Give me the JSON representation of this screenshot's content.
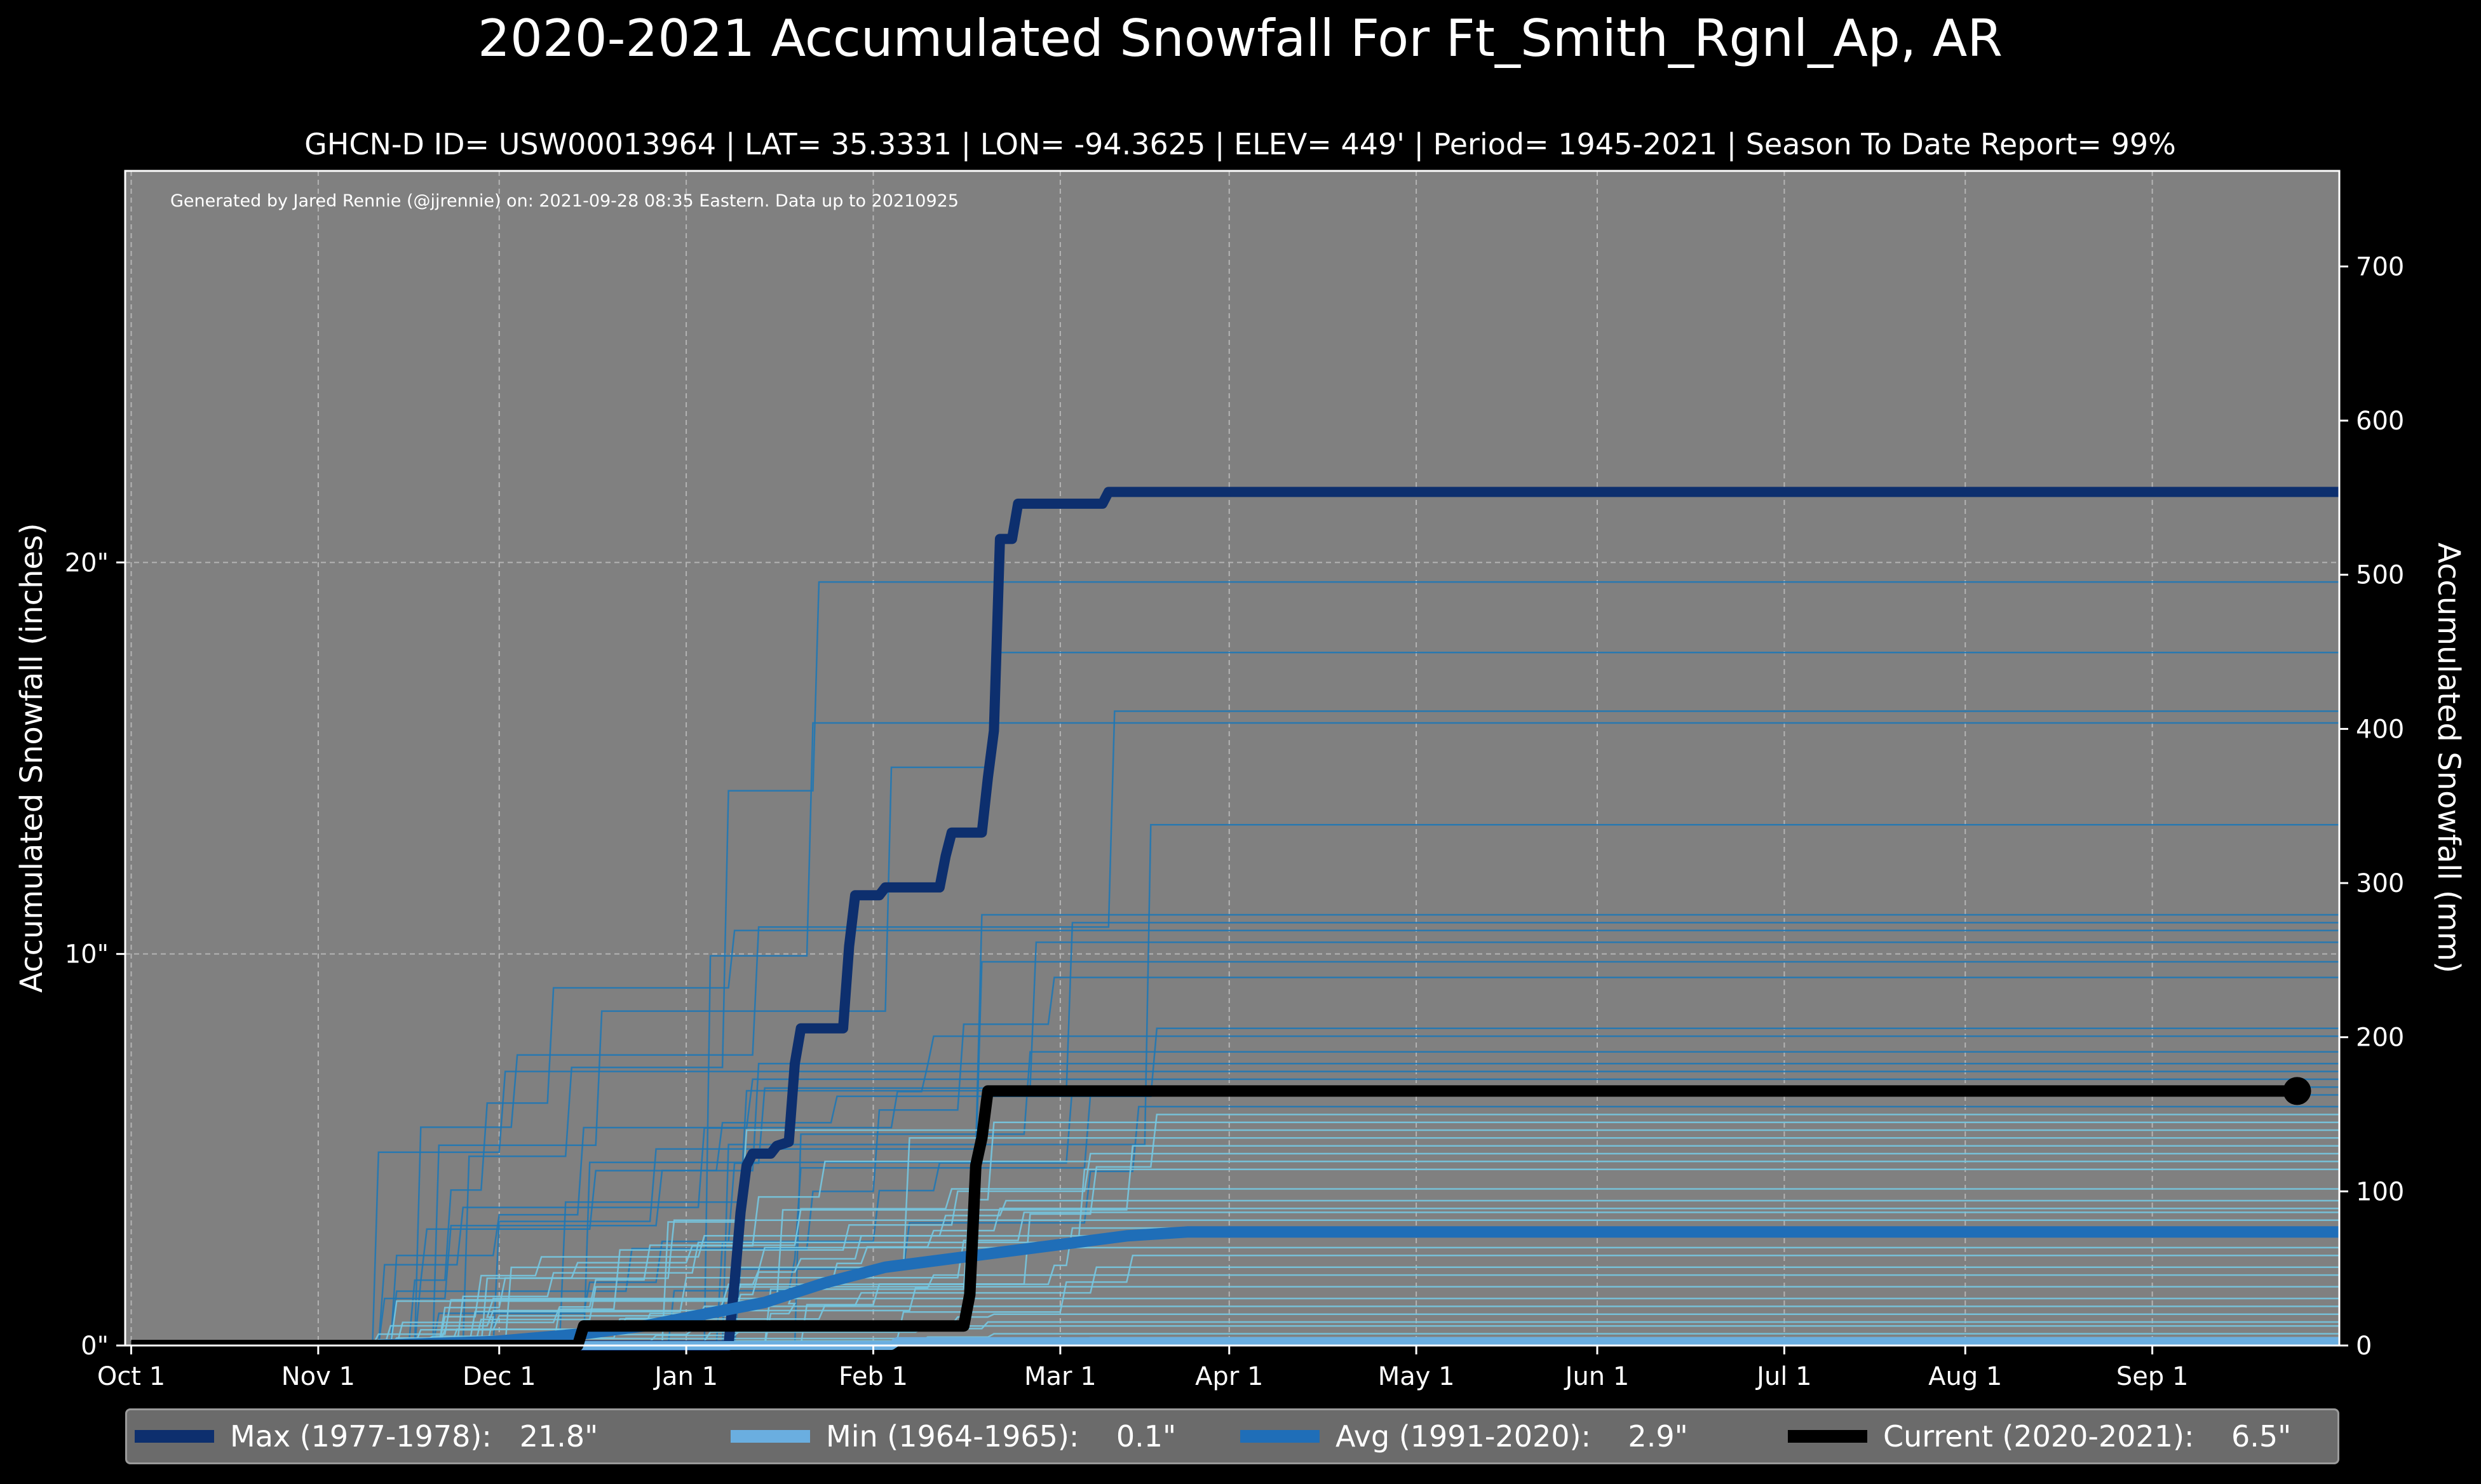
{
  "chart_data": {
    "type": "line",
    "title": "2020-2021 Accumulated Snowfall For Ft_Smith_Rgnl_Ap, AR",
    "subtitle": "GHCN-D ID= USW00013964 | LAT= 35.3331 | LON= -94.3625 | ELEV= 449' | Period= 1945-2021 | Season To Date Report= 99%",
    "credit": "Generated by Jared Rennie (@jjrennie) on: 2021-09-28 08:35 Eastern. Data up to 20210925",
    "ylabel": "Accumulated Snowfall (inches)",
    "ylabel_right": "Accumulated Snowfall (mm)",
    "x_unit": "day of season (0 = Oct 1)",
    "xlim": [
      -1,
      366
    ],
    "ylim": [
      0,
      30
    ],
    "ylim_right_mm": [
      0,
      762
    ],
    "x_ticks": [
      {
        "day": 0,
        "label": "Oct 1"
      },
      {
        "day": 31,
        "label": "Nov 1"
      },
      {
        "day": 61,
        "label": "Dec 1"
      },
      {
        "day": 92,
        "label": "Jan 1"
      },
      {
        "day": 123,
        "label": "Feb 1"
      },
      {
        "day": 154,
        "label": "Mar 1"
      },
      {
        "day": 182,
        "label": "Apr 1"
      },
      {
        "day": 213,
        "label": "May 1"
      },
      {
        "day": 243,
        "label": "Jun 1"
      },
      {
        "day": 274,
        "label": "Jul 1"
      },
      {
        "day": 304,
        "label": "Aug 1"
      },
      {
        "day": 335,
        "label": "Sep 1"
      }
    ],
    "y_ticks": [
      {
        "value": 0,
        "label": "0\""
      },
      {
        "value": 10,
        "label": "10\""
      },
      {
        "value": 20,
        "label": "20\""
      }
    ],
    "y_ticks_right": [
      {
        "value": 0,
        "label": "0"
      },
      {
        "value": 100,
        "label": "100"
      },
      {
        "value": 200,
        "label": "200"
      },
      {
        "value": 300,
        "label": "300"
      },
      {
        "value": 400,
        "label": "400"
      },
      {
        "value": 500,
        "label": "500"
      },
      {
        "value": 600,
        "label": "600"
      },
      {
        "value": 700,
        "label": "700"
      }
    ],
    "grid": true,
    "legend_placement": "bottom",
    "background_color": "#808080",
    "historical_seasons": {
      "color": "#1f77b4",
      "min_color": "#76c7e0",
      "final_totals": [
        19.5,
        17.7,
        16.2,
        15.9,
        13.3,
        11.0,
        10.8,
        10.6,
        10.3,
        9.8,
        9.4,
        8.1,
        7.9,
        7.5,
        7.2,
        7.0,
        6.8,
        6.6,
        6.4,
        6.1,
        5.9,
        5.7,
        5.5,
        5.3,
        5.1,
        4.9,
        4.7,
        4.5,
        4.0,
        3.7,
        3.5,
        3.4,
        3.2,
        3.0,
        2.8,
        2.5,
        2.3,
        2.0,
        1.8,
        1.5,
        1.2,
        1.0,
        0.8,
        0.6,
        0.5,
        0.3,
        0.2,
        0.1
      ]
    },
    "series": [
      {
        "name": "Max (1977-1978)",
        "color": "#0d2f6e",
        "points": [
          [
            0,
            0
          ],
          [
            99,
            0
          ],
          [
            100,
            1.6
          ],
          [
            101,
            3.4
          ],
          [
            102,
            4.6
          ],
          [
            103,
            4.9
          ],
          [
            106,
            4.9
          ],
          [
            107,
            5.1
          ],
          [
            109,
            5.2
          ],
          [
            110,
            7.2
          ],
          [
            111,
            8.1
          ],
          [
            118,
            8.1
          ],
          [
            119,
            10.2
          ],
          [
            120,
            11.5
          ],
          [
            124,
            11.5
          ],
          [
            125,
            11.7
          ],
          [
            134,
            11.7
          ],
          [
            135,
            12.5
          ],
          [
            136,
            13.1
          ],
          [
            141,
            13.1
          ],
          [
            142,
            14.5
          ],
          [
            143,
            15.7
          ],
          [
            144,
            20.6
          ],
          [
            146,
            20.6
          ],
          [
            147,
            21.5
          ],
          [
            161,
            21.5
          ],
          [
            162,
            21.8
          ],
          [
            366,
            21.8
          ]
        ]
      },
      {
        "name": "Min (1964-1965)",
        "color": "#6aaee0",
        "points": [
          [
            0,
            0
          ],
          [
            126,
            0
          ],
          [
            127,
            0.1
          ],
          [
            366,
            0.1
          ]
        ]
      },
      {
        "name": "Avg (1991-2020)",
        "color": "#1f6eb8",
        "points": [
          [
            0,
            0
          ],
          [
            40,
            0.0
          ],
          [
            60,
            0.1
          ],
          [
            75,
            0.3
          ],
          [
            85,
            0.5
          ],
          [
            95,
            0.8
          ],
          [
            105,
            1.1
          ],
          [
            115,
            1.6
          ],
          [
            125,
            2.0
          ],
          [
            135,
            2.2
          ],
          [
            145,
            2.4
          ],
          [
            155,
            2.6
          ],
          [
            165,
            2.8
          ],
          [
            175,
            2.9
          ],
          [
            366,
            2.9
          ]
        ]
      },
      {
        "name": "Current (2020-2021)",
        "color": "#000000",
        "points": [
          [
            0,
            0
          ],
          [
            74,
            0
          ],
          [
            75,
            0.5
          ],
          [
            138,
            0.5
          ],
          [
            139,
            1.3
          ],
          [
            140,
            4.6
          ],
          [
            141,
            5.3
          ],
          [
            142,
            6.5
          ],
          [
            359,
            6.5
          ]
        ]
      }
    ],
    "legend": [
      {
        "label": "Max (1977-1978):   21.8\"",
        "color": "#0d2f6e"
      },
      {
        "label": "Min (1964-1965):    0.1\"",
        "color": "#6aaee0"
      },
      {
        "label": "Avg (1991-2020):    2.9\"",
        "color": "#1f6eb8"
      },
      {
        "label": "Current (2020-2021):    6.5\"",
        "color": "#000000"
      }
    ]
  }
}
